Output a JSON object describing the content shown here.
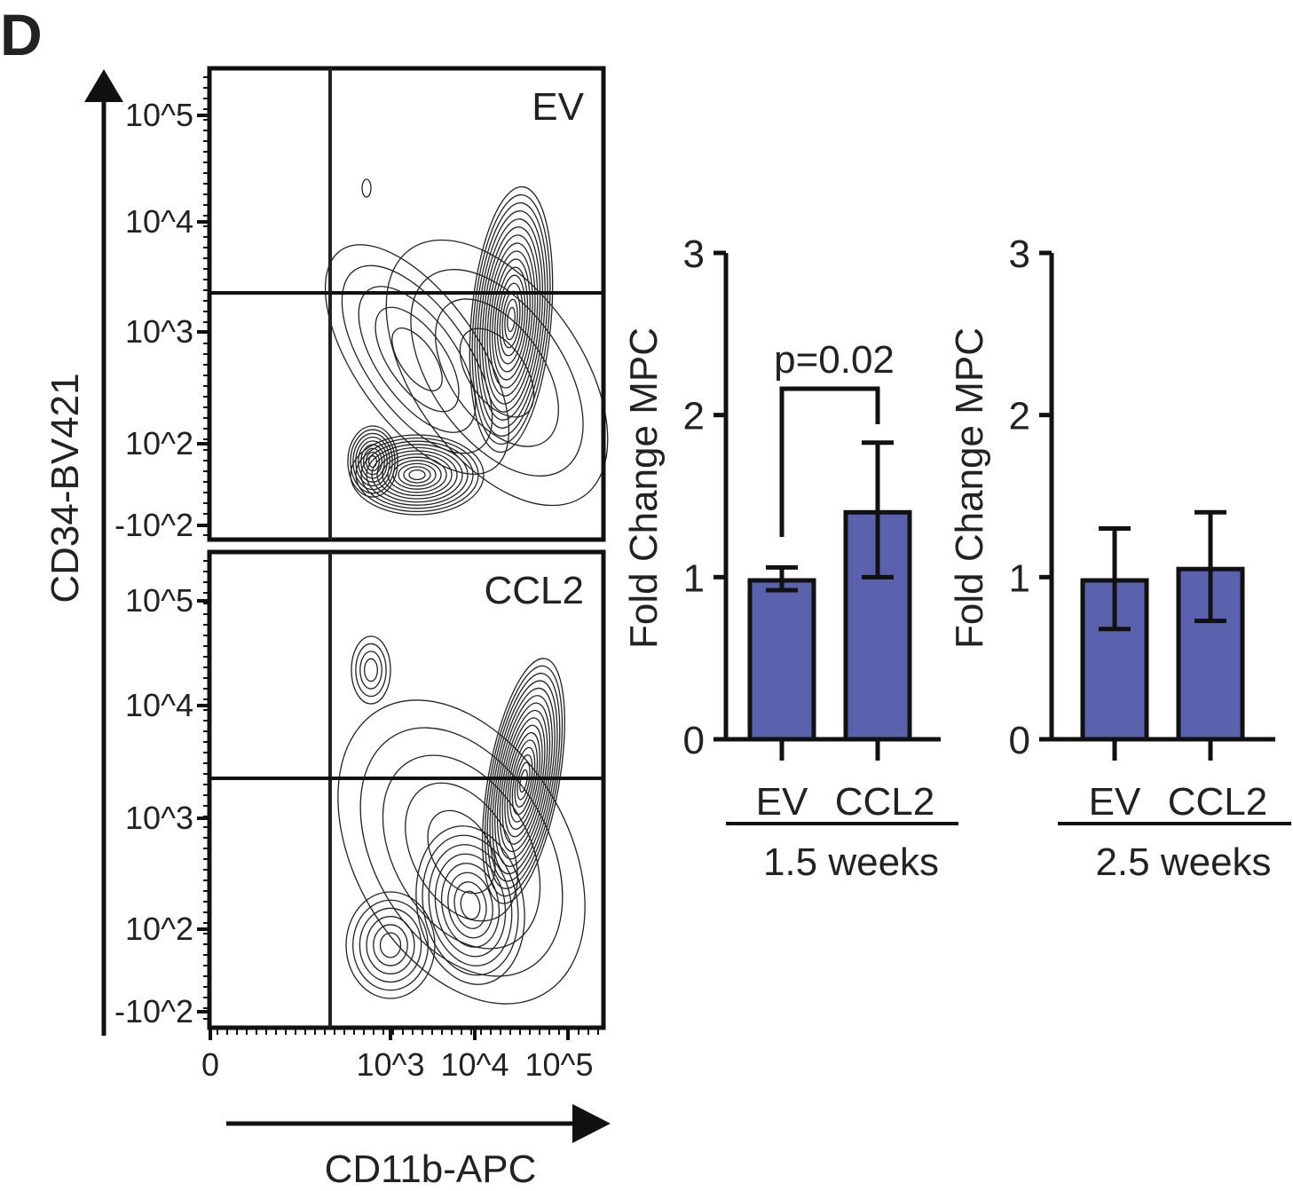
{
  "panel_label": "D",
  "flow": {
    "y_label": "CD34-BV421",
    "x_label": "CD11b-APC",
    "y_ticks": [
      "10^5",
      "10^4",
      "10^3",
      "10^2",
      "-10^2"
    ],
    "x_ticks": [
      "0",
      "10^3",
      "10^4",
      "10^5"
    ],
    "plots": [
      {
        "label": "EV"
      },
      {
        "label": "CCL2"
      }
    ]
  },
  "chart_data": [
    {
      "type": "bar",
      "ylabel": "Fold Change MPC",
      "xlabel": "1.5 weeks",
      "categories": [
        "EV",
        "CCL2"
      ],
      "values": [
        0.98,
        1.4
      ],
      "error_low": [
        0.92,
        1.0
      ],
      "error_high": [
        1.06,
        1.83
      ],
      "ylim": [
        0,
        3
      ],
      "yticks": [
        "0",
        "1",
        "2",
        "3"
      ],
      "annotation": "p=0.02",
      "bar_color": "#5a62ad",
      "grid": false
    },
    {
      "type": "bar",
      "ylabel": "Fold Change MPC",
      "xlabel": "2.5 weeks",
      "categories": [
        "EV",
        "CCL2"
      ],
      "values": [
        0.98,
        1.05
      ],
      "error_low": [
        0.68,
        0.73
      ],
      "error_high": [
        1.3,
        1.4
      ],
      "ylim": [
        0,
        3
      ],
      "yticks": [
        "0",
        "1",
        "2",
        "3"
      ],
      "bar_color": "#5a62ad",
      "grid": false
    }
  ]
}
